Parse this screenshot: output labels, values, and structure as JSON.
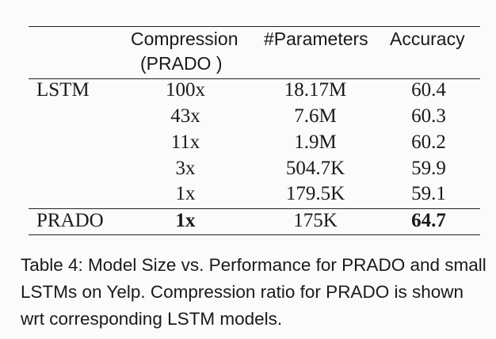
{
  "table": {
    "headers": [
      "",
      "Compression\n(PRADO )",
      "#Parameters",
      "Accuracy"
    ],
    "header_compression_line1": "Compression",
    "header_compression_line2": "(PRADO )",
    "header_params": "#Parameters",
    "header_accuracy": "Accuracy",
    "rows": [
      {
        "model": "LSTM",
        "compression": "100x",
        "params": "18.17M",
        "accuracy": "60.4"
      },
      {
        "model": "",
        "compression": "43x",
        "params": "7.6M",
        "accuracy": "60.3"
      },
      {
        "model": "",
        "compression": "11x",
        "params": "1.9M",
        "accuracy": "60.2"
      },
      {
        "model": "",
        "compression": "3x",
        "params": "504.7K",
        "accuracy": "59.9"
      },
      {
        "model": "",
        "compression": "1x",
        "params": "179.5K",
        "accuracy": "59.1"
      },
      {
        "model": "PRADO",
        "compression": "1x",
        "params": "175K",
        "accuracy": "64.7"
      }
    ]
  },
  "caption": "Table 4: Model Size vs. Performance for PRADO and small LSTMs on Yelp. Compression ratio for PRADO is shown wrt corresponding LSTM models."
}
